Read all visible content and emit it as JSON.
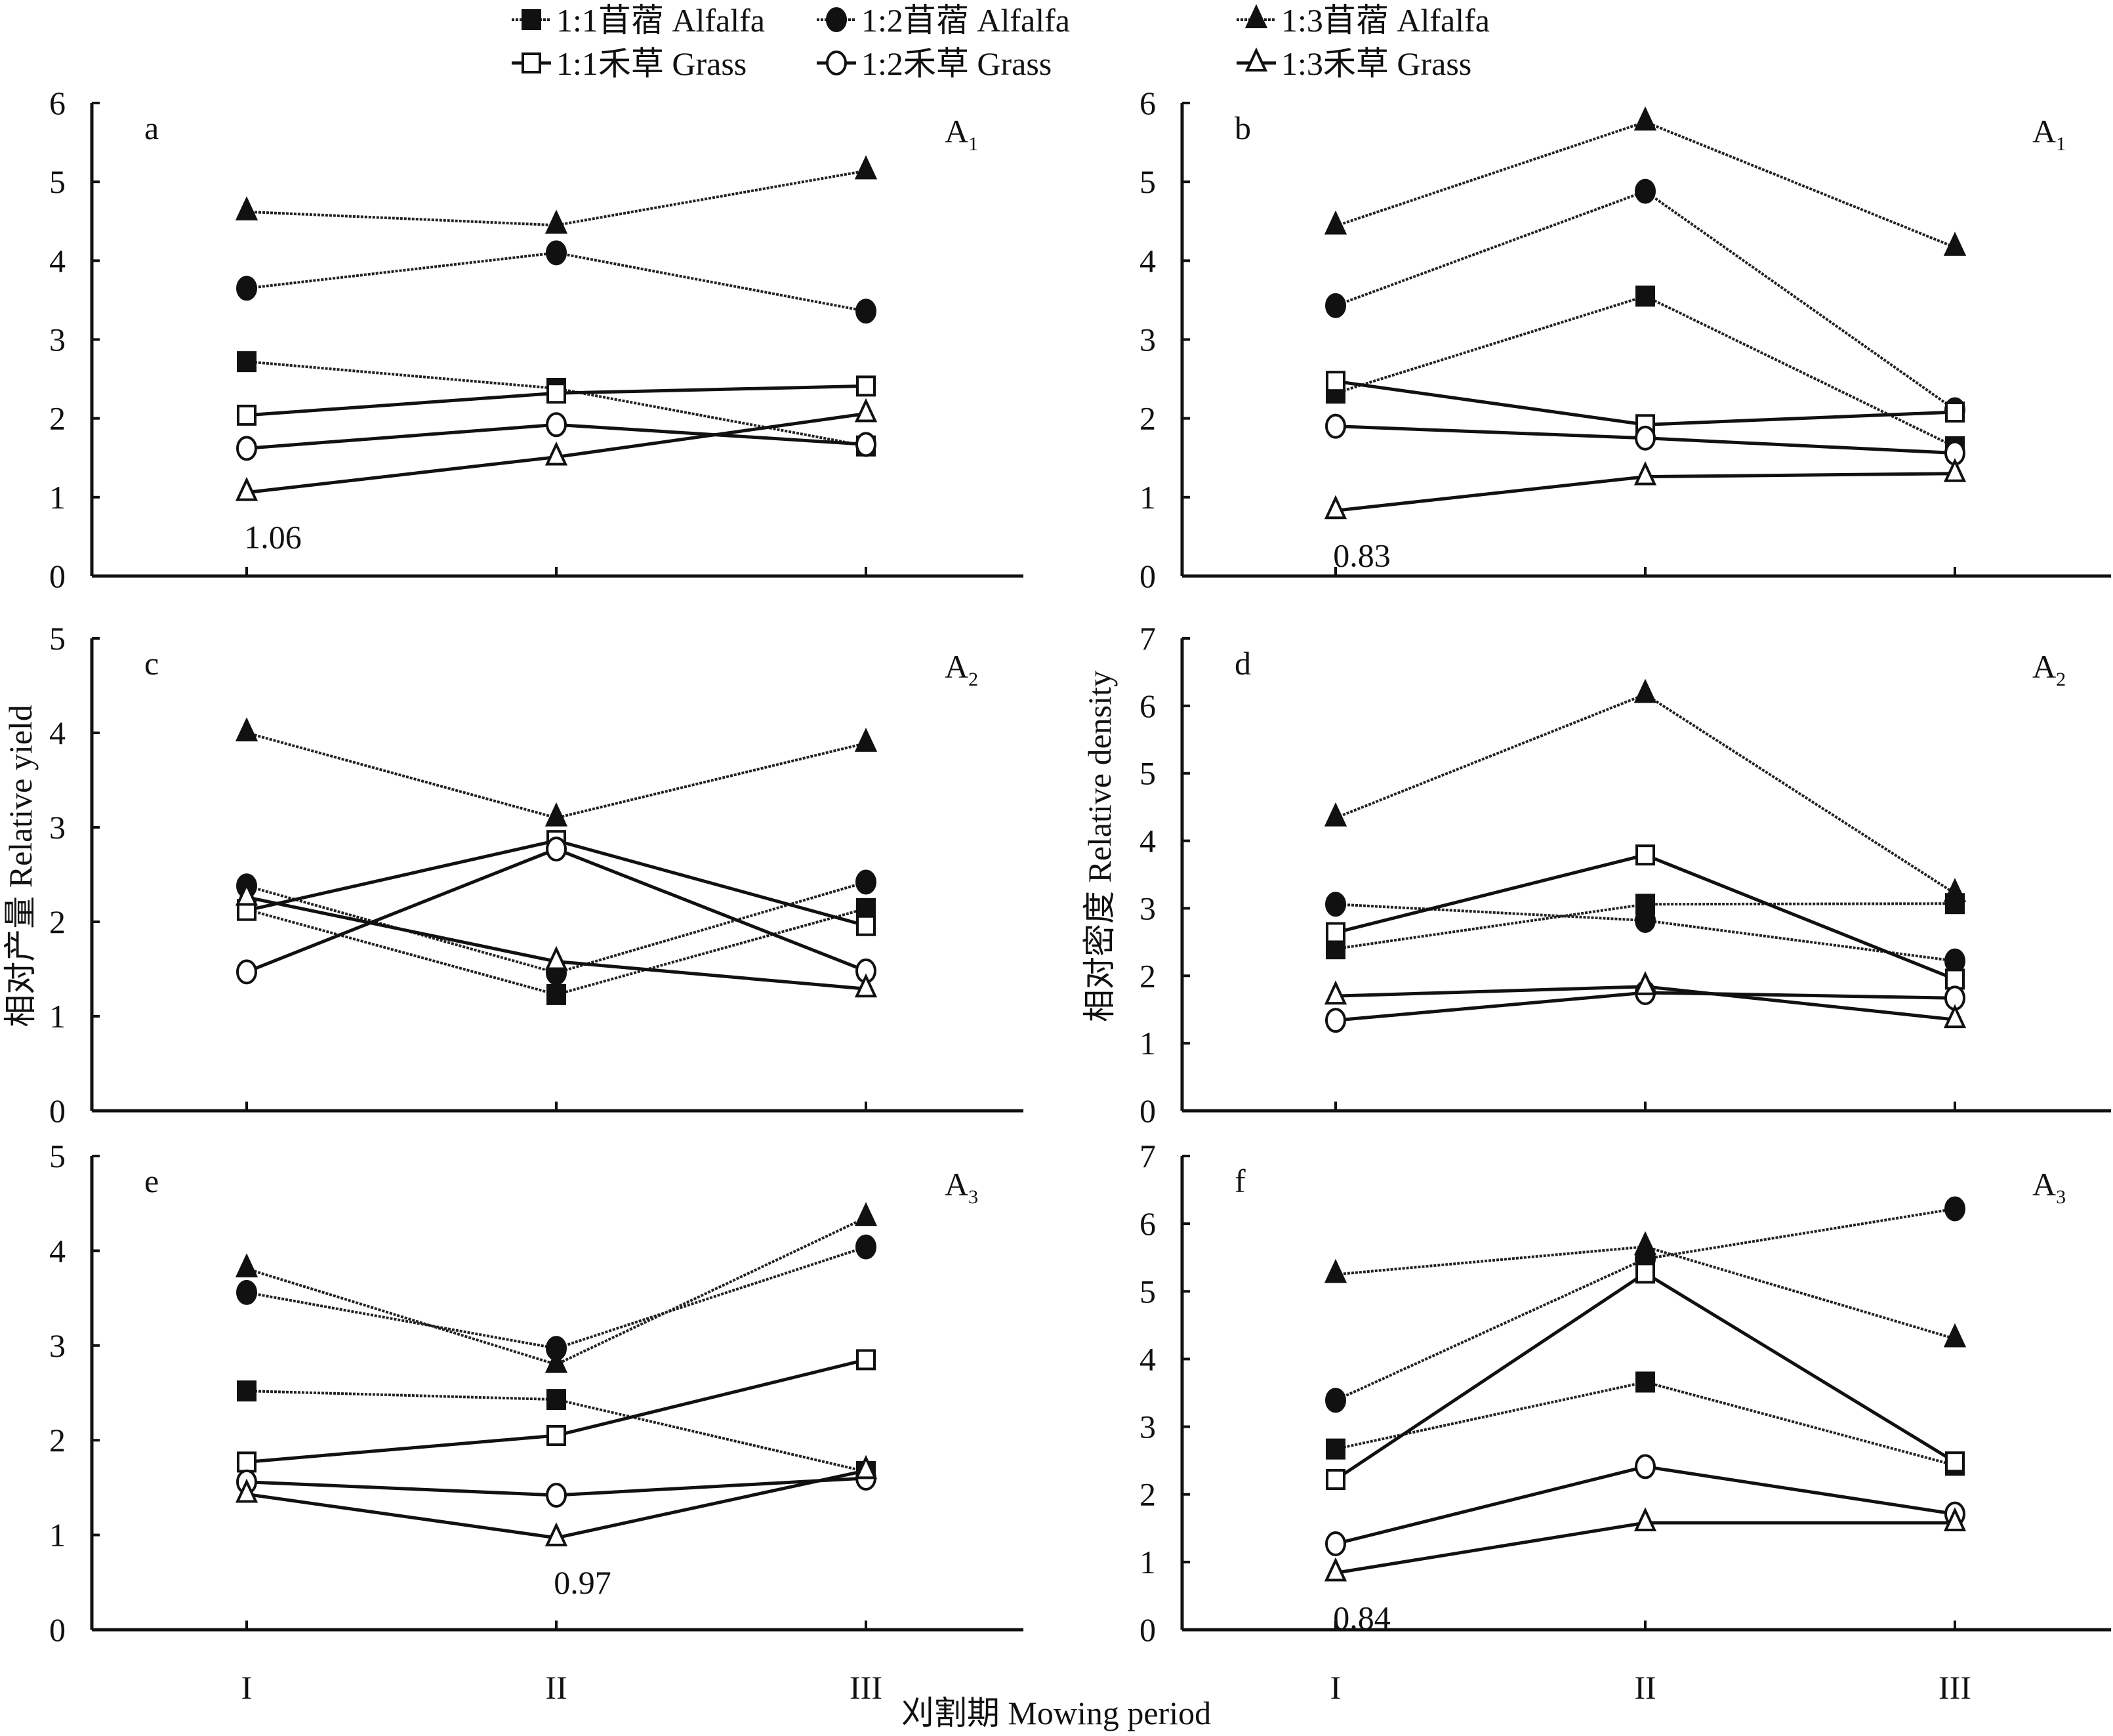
{
  "chart_data": [
    {
      "id": "a",
      "type": "line",
      "panel_label": "a",
      "treatment": "A",
      "treatment_sub": "1",
      "categories": [
        "I",
        "II",
        "III"
      ],
      "ylim": [
        0,
        6
      ],
      "yticks": [
        0,
        1,
        2,
        3,
        4,
        5,
        6
      ],
      "annotation": {
        "text": "1.06",
        "series": "1:3禾草 Grass",
        "category": "I"
      },
      "series": [
        {
          "name": "1:1苜蓿 Alfalfa",
          "values": [
            2.72,
            2.38,
            1.65
          ]
        },
        {
          "name": "1:2苜蓿 Alfalfa",
          "values": [
            3.65,
            4.1,
            3.36
          ]
        },
        {
          "name": "1:3苜蓿 Alfalfa",
          "values": [
            4.62,
            4.45,
            5.14
          ]
        },
        {
          "name": "1:1禾草 Grass",
          "values": [
            2.04,
            2.32,
            2.41
          ]
        },
        {
          "name": "1:2禾草 Grass",
          "values": [
            1.62,
            1.92,
            1.67
          ]
        },
        {
          "name": "1:3禾草 Grass",
          "values": [
            1.06,
            1.51,
            2.06
          ]
        }
      ]
    },
    {
      "id": "b",
      "type": "line",
      "panel_label": "b",
      "treatment": "A",
      "treatment_sub": "1",
      "categories": [
        "I",
        "II",
        "III"
      ],
      "ylim": [
        0,
        6
      ],
      "yticks": [
        0,
        1,
        2,
        3,
        4,
        5,
        6
      ],
      "annotation": {
        "text": "0.83",
        "series": "1:3禾草 Grass",
        "category": "I"
      },
      "series": [
        {
          "name": "1:1苜蓿 Alfalfa",
          "values": [
            2.32,
            3.55,
            1.64
          ]
        },
        {
          "name": "1:2苜蓿 Alfalfa",
          "values": [
            3.43,
            4.88,
            2.11
          ]
        },
        {
          "name": "1:3苜蓿 Alfalfa",
          "values": [
            4.44,
            5.76,
            4.17
          ]
        },
        {
          "name": "1:1禾草 Grass",
          "values": [
            2.47,
            1.92,
            2.08
          ]
        },
        {
          "name": "1:2禾草 Grass",
          "values": [
            1.9,
            1.75,
            1.56
          ]
        },
        {
          "name": "1:3禾草 Grass",
          "values": [
            0.83,
            1.26,
            1.3
          ]
        }
      ]
    },
    {
      "id": "c",
      "type": "line",
      "panel_label": "c",
      "treatment": "A",
      "treatment_sub": "2",
      "categories": [
        "I",
        "II",
        "III"
      ],
      "ylim": [
        0,
        5
      ],
      "yticks": [
        0,
        1,
        2,
        3,
        4,
        5
      ],
      "annotation": null,
      "series": [
        {
          "name": "1:1苜蓿 Alfalfa",
          "values": [
            2.13,
            1.23,
            2.14
          ]
        },
        {
          "name": "1:2苜蓿 Alfalfa",
          "values": [
            2.38,
            1.46,
            2.42
          ]
        },
        {
          "name": "1:3苜蓿 Alfalfa",
          "values": [
            4.0,
            3.1,
            3.89
          ]
        },
        {
          "name": "1:1禾草 Grass",
          "values": [
            2.12,
            2.86,
            1.96
          ]
        },
        {
          "name": "1:2禾草 Grass",
          "values": [
            1.47,
            2.77,
            1.48
          ]
        },
        {
          "name": "1:3禾草 Grass",
          "values": [
            2.26,
            1.58,
            1.29
          ]
        }
      ]
    },
    {
      "id": "d",
      "type": "line",
      "panel_label": "d",
      "treatment": "A",
      "treatment_sub": "2",
      "categories": [
        "I",
        "II",
        "III"
      ],
      "ylim": [
        0,
        7
      ],
      "yticks": [
        0,
        1,
        2,
        3,
        4,
        5,
        6,
        7
      ],
      "annotation": null,
      "series": [
        {
          "name": "1:1苜蓿 Alfalfa",
          "values": [
            2.4,
            3.06,
            3.07
          ]
        },
        {
          "name": "1:2苜蓿 Alfalfa",
          "values": [
            3.06,
            2.82,
            2.22
          ]
        },
        {
          "name": "1:3苜蓿 Alfalfa",
          "values": [
            4.34,
            6.17,
            3.22
          ]
        },
        {
          "name": "1:1禾草 Grass",
          "values": [
            2.64,
            3.79,
            1.95
          ]
        },
        {
          "name": "1:2禾草 Grass",
          "values": [
            1.34,
            1.75,
            1.67
          ]
        },
        {
          "name": "1:3禾草 Grass",
          "values": [
            1.7,
            1.84,
            1.35
          ]
        }
      ]
    },
    {
      "id": "e",
      "type": "line",
      "panel_label": "e",
      "treatment": "A",
      "treatment_sub": "3",
      "categories": [
        "I",
        "II",
        "III"
      ],
      "ylim": [
        0,
        5
      ],
      "yticks": [
        0,
        1,
        2,
        3,
        4,
        5
      ],
      "annotation": {
        "text": "0.97",
        "series": "1:3禾草 Grass",
        "category": "II"
      },
      "series": [
        {
          "name": "1:1苜蓿 Alfalfa",
          "values": [
            2.52,
            2.43,
            1.67
          ]
        },
        {
          "name": "1:2苜蓿 Alfalfa",
          "values": [
            3.56,
            2.97,
            4.04
          ]
        },
        {
          "name": "1:3苜蓿 Alfalfa",
          "values": [
            3.81,
            2.8,
            4.35
          ]
        },
        {
          "name": "1:1禾草 Grass",
          "values": [
            1.77,
            2.05,
            2.85
          ]
        },
        {
          "name": "1:2禾草 Grass",
          "values": [
            1.56,
            1.42,
            1.6
          ]
        },
        {
          "name": "1:3禾草 Grass",
          "values": [
            1.43,
            0.97,
            1.68
          ]
        }
      ]
    },
    {
      "id": "f",
      "type": "line",
      "panel_label": "f",
      "treatment": "A",
      "treatment_sub": "3",
      "categories": [
        "I",
        "II",
        "III"
      ],
      "ylim": [
        0,
        7
      ],
      "yticks": [
        0,
        1,
        2,
        3,
        4,
        5,
        6,
        7
      ],
      "annotation": {
        "text": "0.84",
        "series": "1:3禾草 Grass",
        "category": "I"
      },
      "series": [
        {
          "name": "1:1苜蓿 Alfalfa",
          "values": [
            2.67,
            3.66,
            2.43
          ]
        },
        {
          "name": "1:2苜蓿 Alfalfa",
          "values": [
            3.39,
            5.48,
            6.22
          ]
        },
        {
          "name": "1:3苜蓿 Alfalfa",
          "values": [
            5.25,
            5.66,
            4.3
          ]
        },
        {
          "name": "1:1禾草 Grass",
          "values": [
            2.22,
            5.27,
            2.48
          ]
        },
        {
          "name": "1:2禾草 Grass",
          "values": [
            1.27,
            2.41,
            1.71
          ]
        },
        {
          "name": "1:3禾草 Grass",
          "values": [
            0.84,
            1.58,
            1.58
          ]
        }
      ]
    }
  ],
  "legend": [
    {
      "name": "1:1苜蓿 Alfalfa",
      "marker": "filled-square",
      "line": "dotted"
    },
    {
      "name": "1:2苜蓿 Alfalfa",
      "marker": "filled-circle",
      "line": "dotted"
    },
    {
      "name": "1:3苜蓿 Alfalfa",
      "marker": "filled-triangle",
      "line": "dotted"
    },
    {
      "name": "1:1禾草 Grass",
      "marker": "open-square",
      "line": "solid"
    },
    {
      "name": "1:2禾草 Grass",
      "marker": "open-circle",
      "line": "solid"
    },
    {
      "name": "1:3禾草 Grass",
      "marker": "open-triangle",
      "line": "solid"
    }
  ],
  "legend_placement": "top-center",
  "axes": {
    "ylabel_left": "相对产量 Relative yield",
    "ylabel_right": "相对密度 Relative density",
    "xlabel": "刈割期 Mowing period"
  },
  "colors": {
    "ink": "#111111",
    "background": "#ffffff"
  }
}
